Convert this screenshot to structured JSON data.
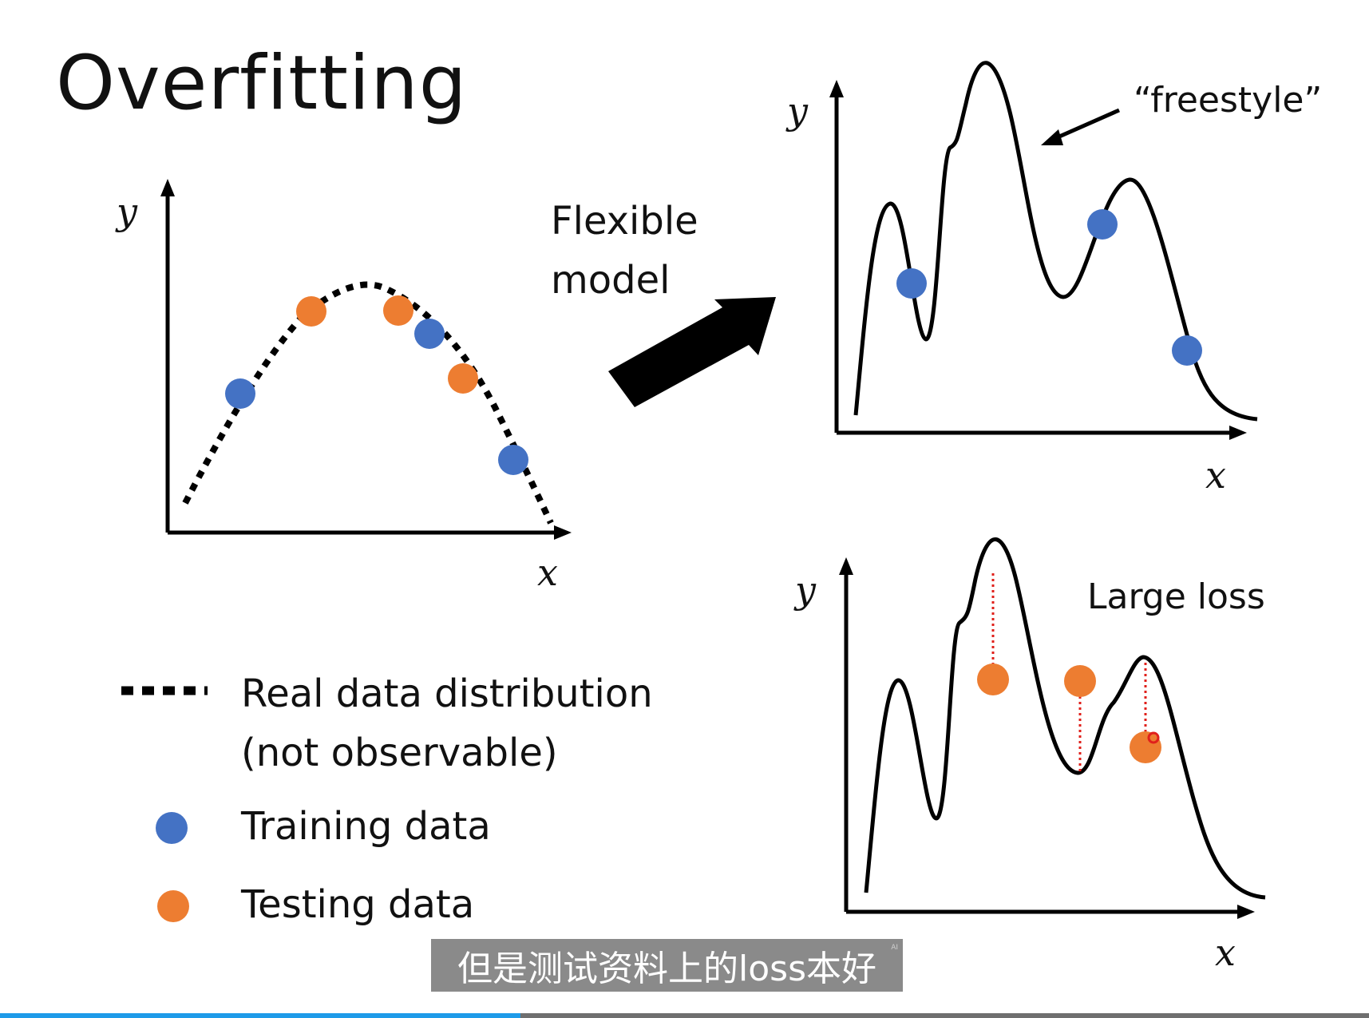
{
  "slide": {
    "title": "Overfitting",
    "flexible_label": [
      "Flexible",
      "model"
    ],
    "freestyle_label": "“freestyle”",
    "large_loss_label": "Large loss",
    "axis_x": "x",
    "axis_y": "y"
  },
  "legend": {
    "real_line1": "Real data distribution",
    "real_line2": "(not observable)",
    "training": "Training data",
    "testing": "Testing data"
  },
  "colors": {
    "training": "#4472c4",
    "testing": "#ed7d31",
    "curve": "#000000",
    "loss_line": "#e0201b"
  },
  "subtitle": {
    "text": "但是测试资料上的loss本好",
    "badge": "AI"
  },
  "player": {
    "progress_fraction": 0.38
  }
}
